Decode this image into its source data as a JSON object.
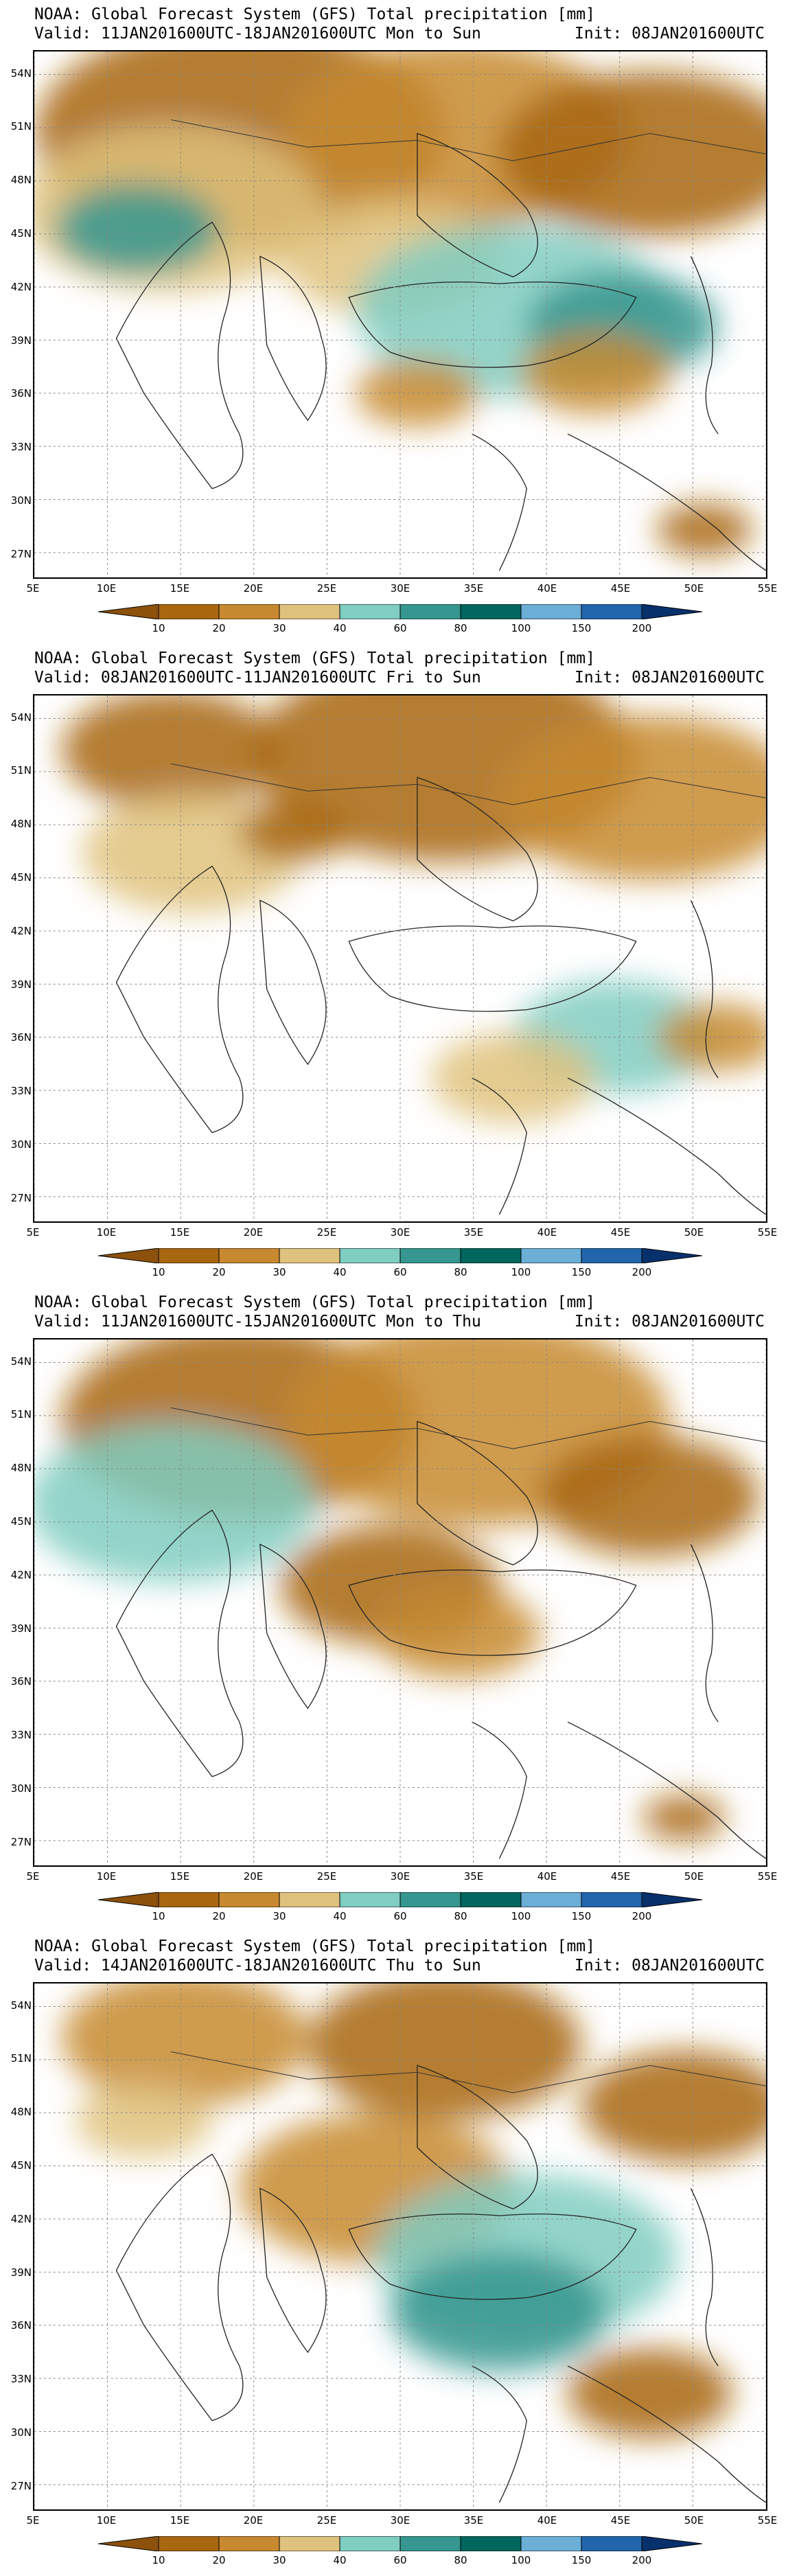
{
  "panels": [
    {
      "title": "NOAA: Global Forecast System (GFS) Total precipitation [mm]",
      "valid": "Valid: 11JAN201600UTC-18JAN201600UTC Mon to Sun",
      "init": "Init: 08JAN201600UTC"
    },
    {
      "title": "NOAA: Global Forecast System (GFS) Total precipitation [mm]",
      "valid": "Valid: 08JAN201600UTC-11JAN201600UTC Fri to Sun",
      "init": "Init: 08JAN201600UTC"
    },
    {
      "title": "NOAA: Global Forecast System (GFS) Total precipitation [mm]",
      "valid": "Valid: 11JAN201600UTC-15JAN201600UTC Mon to Thu",
      "init": "Init: 08JAN201600UTC"
    },
    {
      "title": "NOAA: Global Forecast System (GFS) Total precipitation [mm]",
      "valid": "Valid: 14JAN201600UTC-18JAN201600UTC Thu to Sun",
      "init": "Init: 08JAN201600UTC"
    }
  ],
  "lat_labels": [
    "54N",
    "51N",
    "48N",
    "45N",
    "42N",
    "39N",
    "36N",
    "33N",
    "30N",
    "27N"
  ],
  "lon_labels": [
    "5E",
    "10E",
    "15E",
    "20E",
    "25E",
    "30E",
    "35E",
    "40E",
    "45E",
    "50E",
    "55E"
  ],
  "legend": {
    "labels": [
      "10",
      "20",
      "30",
      "40",
      "60",
      "80",
      "100",
      "150",
      "200"
    ],
    "colors": [
      "#8c510a",
      "#a8660f",
      "#c7892f",
      "#dfc27d",
      "#80cdc1",
      "#35978f",
      "#01665e",
      "#6baed6",
      "#2166ac",
      "#08306b"
    ]
  }
}
